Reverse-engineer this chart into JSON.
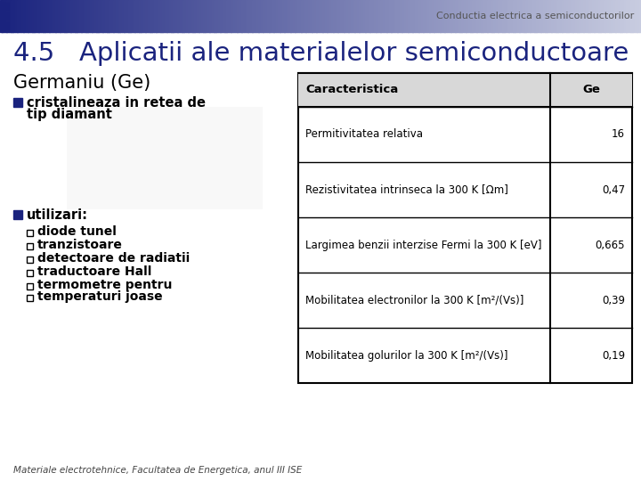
{
  "header_text": "Conductia electrica a semiconductorilor",
  "title": "4.5   Aplicatii ale materialelor semiconductoare",
  "section_title": "Germaniu (Ge)",
  "bullet1_line1": "cristalineaza in retea de",
  "bullet1_line2": "tip diamant",
  "bullet2_title": "utilizari:",
  "sub_bullets": [
    "diode tunel",
    "tranzistoare",
    "detectoare de radiatii",
    "traductoare Hall",
    "termometre pentru",
    "temperaturi joase"
  ],
  "footer": "Materiale electrotehnice, Facultatea de Energetica, anul III ISE",
  "table_headers": [
    "Caracteristica",
    "Ge"
  ],
  "table_rows": [
    [
      "Permitivitatea relativa",
      "16"
    ],
    [
      "Rezistivitatea intrinseca la 300 K [Ωm]",
      "0,47"
    ],
    [
      "Largimea benzii interzise Fermi la 300 K [eV]",
      "0,665"
    ],
    [
      "Mobilitatea electronilor la 300 K [m²/(Vs)]",
      "0,39"
    ],
    [
      "Mobilitatea golurilor la 300 K [m²/(Vs)]",
      "0,19"
    ]
  ],
  "bg_color": "#ffffff",
  "header_bar_left": "#1a237e",
  "header_bar_right": "#c8cce0",
  "title_color": "#1a237e",
  "section_color": "#000000",
  "table_header_bg": "#d8d8d8",
  "table_border_color": "#000000",
  "bullet_color": "#1a237e",
  "text_color": "#000000",
  "header_text_color": "#555555"
}
